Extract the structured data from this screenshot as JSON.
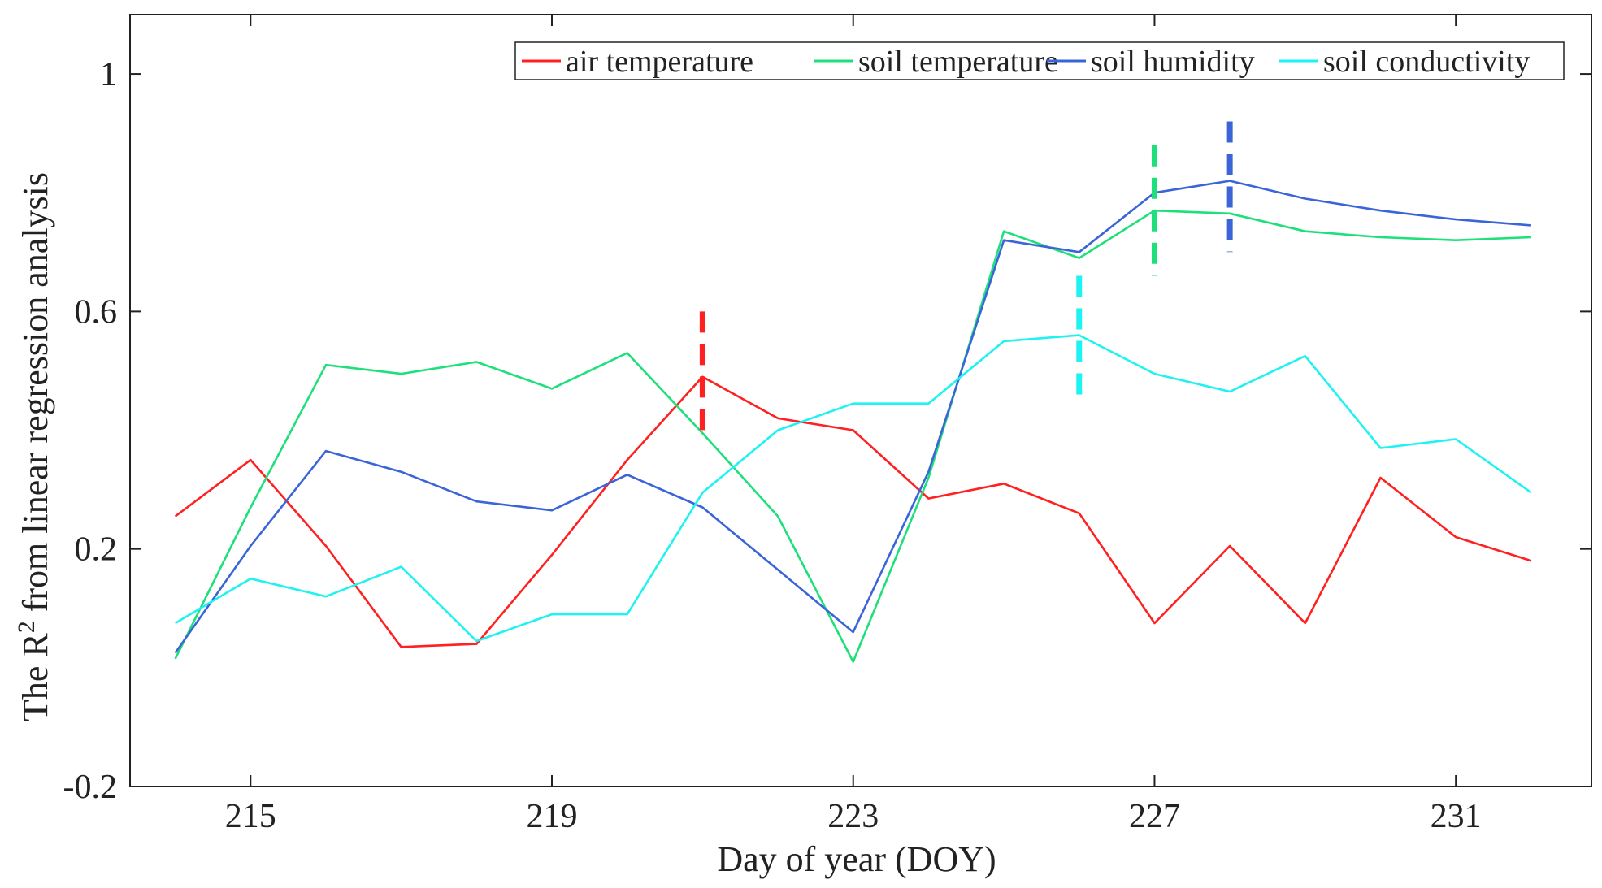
{
  "chart_data": {
    "type": "line",
    "title": "",
    "xlabel": "Day of year (DOY)",
    "ylabel_prefix": "The R",
    "ylabel_sup": "2",
    "ylabel_suffix": " from linear regression analysis",
    "xlim": [
      213.4,
      232.8
    ],
    "ylim": [
      -0.2,
      1.1
    ],
    "x_ticks": [
      215,
      219,
      223,
      227,
      231
    ],
    "x_tick_labels": [
      "215",
      "219",
      "223",
      "227",
      "231"
    ],
    "y_ticks": [
      -0.2,
      0.2,
      0.6,
      1
    ],
    "y_tick_labels": [
      "-0.2",
      "0.2",
      "0.6",
      "1"
    ],
    "x": [
      214,
      215,
      216,
      217,
      218,
      219,
      220,
      221,
      222,
      223,
      224,
      225,
      226,
      227,
      228,
      229,
      230,
      231,
      232
    ],
    "series": [
      {
        "name": "air temperature",
        "color": "#ff2020",
        "values": [
          0.255,
          0.35,
          0.205,
          0.035,
          0.04,
          0.19,
          0.35,
          0.49,
          0.42,
          0.4,
          0.285,
          0.31,
          0.26,
          0.075,
          0.205,
          0.075,
          0.32,
          0.22,
          0.18
        ]
      },
      {
        "name": "soil temperature",
        "color": "#1ee07a",
        "values": [
          0.015,
          0.27,
          0.51,
          0.495,
          0.515,
          0.47,
          0.53,
          0.395,
          0.255,
          0.01,
          0.32,
          0.735,
          0.69,
          0.77,
          0.765,
          0.735,
          0.725,
          0.72,
          0.725
        ]
      },
      {
        "name": "soil humidity",
        "color": "#3a64d8",
        "values": [
          0.025,
          0.205,
          0.365,
          0.33,
          0.28,
          0.265,
          0.325,
          0.27,
          0.165,
          0.06,
          0.33,
          0.72,
          0.7,
          0.8,
          0.82,
          0.79,
          0.77,
          0.755,
          0.745
        ]
      },
      {
        "name": "soil conductivity",
        "color": "#1ef2f2",
        "values": [
          0.075,
          0.15,
          0.12,
          0.17,
          0.045,
          0.09,
          0.09,
          0.295,
          0.4,
          0.445,
          0.445,
          0.55,
          0.56,
          0.495,
          0.465,
          0.525,
          0.37,
          0.385,
          0.295
        ]
      }
    ],
    "markers": [
      {
        "series": "air temperature",
        "x": 221,
        "y_range": [
          0.39,
          0.6
        ],
        "color": "#ff2020"
      },
      {
        "series": "soil conductivity",
        "x": 226,
        "y_range": [
          0.46,
          0.66
        ],
        "color": "#1ef2f2"
      },
      {
        "series": "soil temperature",
        "x": 227,
        "y_range": [
          0.66,
          0.88
        ],
        "color": "#1ee07a"
      },
      {
        "series": "soil humidity",
        "x": 228,
        "y_range": [
          0.7,
          0.92
        ],
        "color": "#3a64d8"
      }
    ],
    "legend": {
      "placement": "top-right",
      "entries": [
        "air temperature",
        "soil temperature",
        "soil humidity",
        "soil conductivity"
      ]
    },
    "grid": false
  }
}
